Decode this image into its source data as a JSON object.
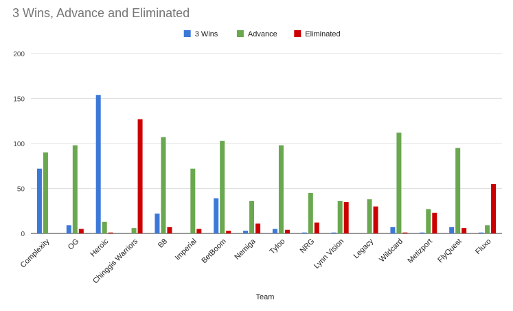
{
  "chart_data": {
    "type": "bar",
    "title": "3 Wins, Advance and Eliminated",
    "xlabel": "Team",
    "ylabel": "",
    "ylim": [
      0,
      200
    ],
    "yticks": [
      0,
      50,
      100,
      150,
      200
    ],
    "grid": true,
    "legend_position": "top-center",
    "categories": [
      "Complexity",
      "OG",
      "Heroic",
      "Chinggis Warriors",
      "B8",
      "Imperial",
      "BetBoom",
      "Nemiga",
      "Tyloo",
      "NRG",
      "Lynn Vision",
      "Legacy",
      "Wildcard",
      "Metizport",
      "FlyQuest",
      "Fluxo"
    ],
    "series": [
      {
        "name": "3 Wins",
        "color": "#3c78d8",
        "values": [
          72,
          9,
          154,
          0,
          22,
          0,
          39,
          3,
          5,
          1,
          1,
          0,
          7,
          1,
          7,
          1
        ]
      },
      {
        "name": "Advance",
        "color": "#6aa84f",
        "values": [
          90,
          98,
          13,
          6,
          107,
          72,
          103,
          36,
          98,
          45,
          36,
          38,
          112,
          27,
          95,
          9
        ]
      },
      {
        "name": "Eliminated",
        "color": "#cc0000",
        "values": [
          0,
          5,
          1,
          127,
          7,
          5,
          3,
          11,
          4,
          12,
          35,
          30,
          1,
          23,
          6,
          55
        ]
      }
    ]
  }
}
